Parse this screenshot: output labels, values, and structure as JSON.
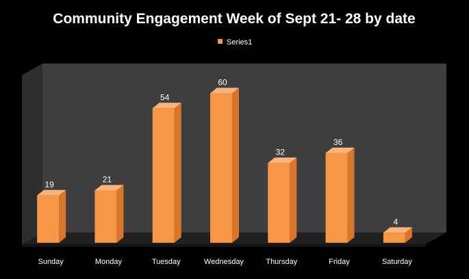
{
  "chart_data": {
    "type": "bar",
    "title": "Community Engagement Week of Sept 21- 28 by date",
    "categories": [
      "Sunday",
      "Monday",
      "Tuesday",
      "Wednesday",
      "Thursday",
      "Friday",
      "Saturday"
    ],
    "series": [
      {
        "name": "Series1",
        "values": [
          19,
          21,
          54,
          60,
          32,
          36,
          4
        ]
      }
    ],
    "data_labels": [
      "19",
      "21",
      "54",
      "60",
      "32",
      "36",
      "4"
    ],
    "ylim": [
      0,
      70
    ],
    "grid": false,
    "legend_position": "top",
    "style": "3d-column",
    "colors": {
      "background": "#000000",
      "bar_front": "#f79646",
      "bar_side": "#d8752b",
      "bar_top": "#fbb57c",
      "wall": "#3e3e3e",
      "floor": "#202020",
      "text": "#ffffff"
    }
  }
}
